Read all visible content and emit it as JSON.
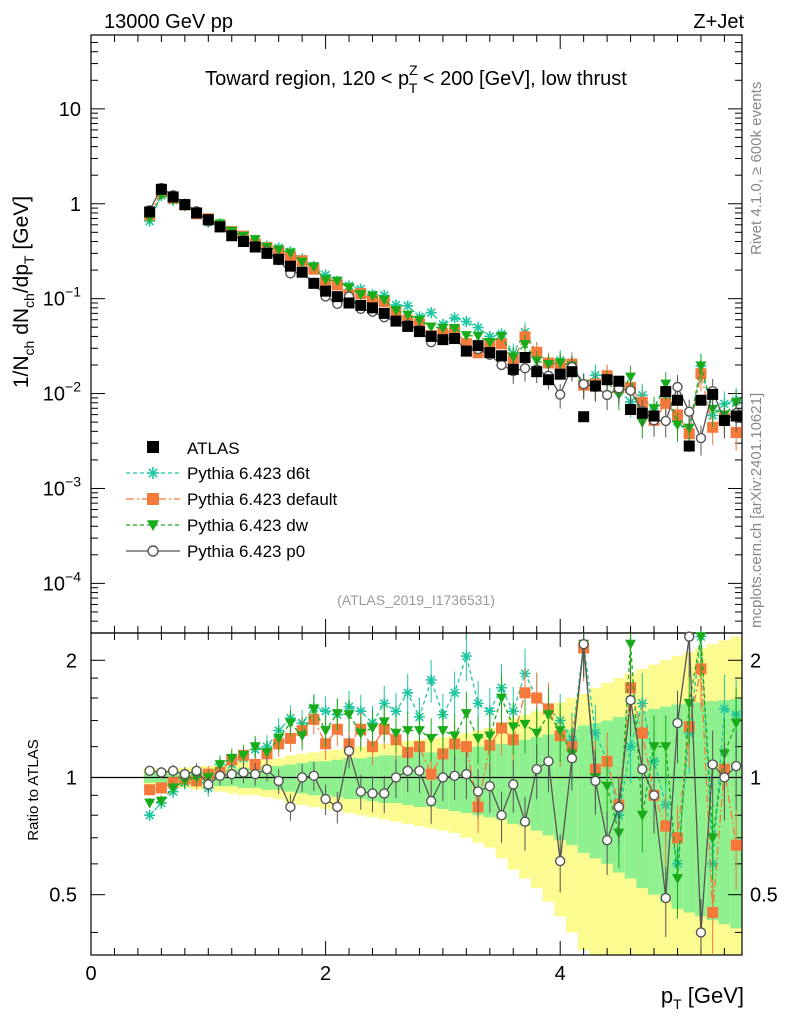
{
  "header": {
    "left": "13000 GeV pp",
    "right": "Z+Jet"
  },
  "side_labels": {
    "rivet": "Rivet 4.1.0, ≥ 600k events",
    "mcplots": "mcplots.cern.ch [arXiv:2401.10621]"
  },
  "colors": {
    "atlas": "#000000",
    "d6t": "#1fc7a1",
    "default": "#f5793a",
    "dw": "#1aab1a",
    "p0": "#555555",
    "band_yellow": "#fbfb8f",
    "band_green": "#8ff08f"
  },
  "chart_data": {
    "type": "scatter",
    "title_parts": {
      "prefix": "Toward region, 120 < p",
      "sup": "Z",
      "sub": "T",
      "suffix": " < 200 [GeV], low thrust"
    },
    "watermark": "(ATLAS_2019_I1736531)",
    "ylabel_parts": [
      "1/N",
      "ch",
      " dN",
      "ch",
      "/dp",
      "T",
      " [GeV]"
    ],
    "xlabel_parts": [
      "p",
      "T",
      " [GeV]"
    ],
    "ratio_ylabel": "Ratio to ATLAS",
    "xlim": [
      0,
      5.55
    ],
    "ylim_main": [
      3e-05,
      60
    ],
    "ylim_ratio": [
      0.35,
      2.35
    ],
    "x_ticks": [
      "0",
      "2",
      "4"
    ],
    "x_tick_values": [
      0,
      2,
      4
    ],
    "main_y_ticks": [
      {
        "base": "10",
        "exp": "−4",
        "value": 0.0001
      },
      {
        "base": "10",
        "exp": "−3",
        "value": 0.001
      },
      {
        "base": "10",
        "exp": "−2",
        "value": 0.01
      },
      {
        "base": "10",
        "exp": "−1",
        "value": 0.1
      },
      {
        "base": "1",
        "exp": "",
        "value": 1
      },
      {
        "base": "10",
        "exp": "",
        "value": 10
      }
    ],
    "ratio_y_ticks": [
      {
        "label": "0.5",
        "value": 0.5
      },
      {
        "label": "1",
        "value": 1
      },
      {
        "label": "2",
        "value": 2
      }
    ],
    "x": [
      0.5,
      0.6,
      0.7,
      0.8,
      0.9,
      1.0,
      1.1,
      1.2,
      1.3,
      1.4,
      1.5,
      1.6,
      1.7,
      1.8,
      1.9,
      2.0,
      2.1,
      2.2,
      2.3,
      2.4,
      2.5,
      2.6,
      2.7,
      2.8,
      2.9,
      3.0,
      3.1,
      3.2,
      3.3,
      3.4,
      3.5,
      3.6,
      3.7,
      3.8,
      3.9,
      4.0,
      4.1,
      4.2,
      4.3,
      4.4,
      4.5,
      4.6,
      4.7,
      4.8,
      4.9,
      5.0,
      5.1,
      5.2,
      5.3,
      5.4,
      5.5
    ],
    "atlas": [
      0.82,
      1.42,
      1.18,
      0.98,
      0.8,
      0.68,
      0.57,
      0.46,
      0.4,
      0.35,
      0.3,
      0.26,
      0.22,
      0.19,
      0.145,
      0.12,
      0.105,
      0.09,
      0.085,
      0.08,
      0.07,
      0.058,
      0.051,
      0.045,
      0.04,
      0.037,
      0.038,
      0.028,
      0.032,
      0.027,
      0.025,
      0.018,
      0.024,
      0.017,
      0.014,
      0.016,
      0.017,
      0.0057,
      0.012,
      0.014,
      0.0135,
      0.0068,
      0.0062,
      0.0058,
      0.0105,
      0.0085,
      0.0028,
      0.0085,
      0.0098,
      0.0052,
      0.0058
    ],
    "series": [
      {
        "name": "Pythia 6.423 d6t",
        "key": "d6t",
        "marker": "star",
        "dash": "4,3",
        "ratio": [
          0.8,
          0.86,
          0.92,
          0.97,
          1.01,
          0.94,
          1.08,
          1.08,
          1.12,
          1.18,
          1.2,
          1.32,
          1.42,
          1.38,
          1.51,
          1.48,
          1.45,
          1.52,
          1.48,
          1.38,
          1.55,
          1.48,
          1.65,
          1.43,
          1.78,
          1.45,
          1.65,
          2.05,
          1.55,
          1.48,
          1.7,
          1.48,
          1.85,
          1.6,
          1.5,
          1.4,
          1.25,
          2.2,
          1.3,
          1.1,
          0.8,
          1.2,
          1.55,
          1.1,
          0.85,
          0.6,
          1.3,
          2.3,
          0.6,
          1.5,
          1.45
        ]
      },
      {
        "name": "Pythia 6.423 default",
        "key": "default",
        "marker": "square",
        "dash": "8,3,2,3",
        "ratio": [
          0.93,
          0.94,
          0.97,
          0.99,
          0.98,
          1.02,
          1.03,
          1.11,
          1.14,
          1.08,
          1.15,
          1.22,
          1.26,
          1.32,
          1.41,
          1.22,
          1.33,
          1.22,
          1.33,
          1.2,
          1.33,
          1.25,
          1.16,
          1.2,
          1.02,
          1.15,
          1.22,
          1.2,
          0.84,
          1.21,
          1.34,
          1.25,
          1.65,
          1.6,
          1.5,
          1.28,
          1.2,
          2.15,
          1.05,
          1.1,
          0.85,
          1.7,
          1.3,
          0.9,
          0.75,
          0.7,
          1.35,
          1.9,
          0.45,
          1.05,
          0.67
        ]
      },
      {
        "name": "Pythia 6.423 dw",
        "key": "dw",
        "marker": "triangle",
        "dash": "4,3",
        "ratio": [
          0.86,
          0.87,
          0.94,
          0.98,
          1.0,
          1.0,
          1.08,
          1.12,
          1.14,
          1.2,
          1.16,
          1.26,
          1.38,
          1.28,
          1.5,
          1.32,
          1.46,
          1.45,
          1.3,
          1.34,
          1.39,
          1.3,
          1.32,
          1.32,
          1.26,
          1.32,
          1.28,
          1.46,
          1.26,
          1.28,
          1.6,
          1.35,
          1.37,
          1.3,
          1.45,
          1.32,
          1.15,
          2.2,
          1.0,
          0.95,
          0.72,
          2.2,
          0.8,
          1.2,
          1.2,
          0.55,
          1.55,
          2.3,
          0.7,
          1.15,
          1.38
        ]
      },
      {
        "name": "Pythia 6.423 p0",
        "key": "p0",
        "marker": "circle",
        "dash": "",
        "ratio": [
          1.04,
          1.03,
          1.04,
          1.02,
          1.04,
          0.96,
          1.01,
          1.02,
          1.03,
          1.02,
          1.05,
          0.98,
          0.84,
          1.0,
          1.01,
          0.88,
          0.84,
          1.17,
          0.92,
          0.91,
          0.91,
          1.0,
          1.04,
          1.04,
          0.87,
          1.0,
          1.01,
          1.02,
          0.92,
          0.95,
          0.8,
          0.96,
          0.77,
          1.05,
          1.1,
          0.61,
          1.12,
          2.2,
          0.98,
          0.69,
          0.84,
          1.58,
          1.05,
          0.9,
          0.49,
          1.38,
          2.3,
          0.4,
          1.08,
          1.0,
          1.07
        ]
      }
    ],
    "band_yellow": [
      [
        0.94,
        1.06
      ],
      [
        0.95,
        1.05
      ],
      [
        0.95,
        1.05
      ],
      [
        0.94,
        1.06
      ],
      [
        0.93,
        1.07
      ],
      [
        0.93,
        1.07
      ],
      [
        0.92,
        1.08
      ],
      [
        0.91,
        1.09
      ],
      [
        0.9,
        1.1
      ],
      [
        0.9,
        1.1
      ],
      [
        0.89,
        1.11
      ],
      [
        0.88,
        1.12
      ],
      [
        0.86,
        1.14
      ],
      [
        0.85,
        1.15
      ],
      [
        0.84,
        1.16
      ],
      [
        0.83,
        1.17
      ],
      [
        0.82,
        1.18
      ],
      [
        0.81,
        1.19
      ],
      [
        0.8,
        1.2
      ],
      [
        0.79,
        1.21
      ],
      [
        0.78,
        1.22
      ],
      [
        0.77,
        1.23
      ],
      [
        0.76,
        1.24
      ],
      [
        0.75,
        1.25
      ],
      [
        0.74,
        1.26
      ],
      [
        0.73,
        1.27
      ],
      [
        0.72,
        1.28
      ],
      [
        0.7,
        1.3
      ],
      [
        0.68,
        1.32
      ],
      [
        0.66,
        1.34
      ],
      [
        0.62,
        1.38
      ],
      [
        0.58,
        1.42
      ],
      [
        0.55,
        1.45
      ],
      [
        0.52,
        1.48
      ],
      [
        0.48,
        1.52
      ],
      [
        0.44,
        1.56
      ],
      [
        0.4,
        1.6
      ],
      [
        0.36,
        1.64
      ],
      [
        0.35,
        1.7
      ],
      [
        0.35,
        1.75
      ],
      [
        0.35,
        1.8
      ],
      [
        0.35,
        1.85
      ],
      [
        0.35,
        1.9
      ],
      [
        0.35,
        1.95
      ],
      [
        0.35,
        2.0
      ],
      [
        0.35,
        2.05
      ],
      [
        0.35,
        2.1
      ],
      [
        0.35,
        2.15
      ],
      [
        0.35,
        2.2
      ],
      [
        0.35,
        2.25
      ],
      [
        0.35,
        2.3
      ]
    ],
    "band_green": [
      [
        0.97,
        1.03
      ],
      [
        0.97,
        1.03
      ],
      [
        0.97,
        1.03
      ],
      [
        0.97,
        1.03
      ],
      [
        0.96,
        1.04
      ],
      [
        0.96,
        1.04
      ],
      [
        0.95,
        1.05
      ],
      [
        0.95,
        1.05
      ],
      [
        0.94,
        1.06
      ],
      [
        0.94,
        1.06
      ],
      [
        0.93,
        1.07
      ],
      [
        0.93,
        1.07
      ],
      [
        0.92,
        1.08
      ],
      [
        0.91,
        1.09
      ],
      [
        0.9,
        1.1
      ],
      [
        0.9,
        1.1
      ],
      [
        0.89,
        1.11
      ],
      [
        0.88,
        1.12
      ],
      [
        0.88,
        1.12
      ],
      [
        0.87,
        1.13
      ],
      [
        0.86,
        1.14
      ],
      [
        0.86,
        1.14
      ],
      [
        0.85,
        1.15
      ],
      [
        0.84,
        1.16
      ],
      [
        0.84,
        1.16
      ],
      [
        0.83,
        1.17
      ],
      [
        0.82,
        1.18
      ],
      [
        0.81,
        1.19
      ],
      [
        0.8,
        1.2
      ],
      [
        0.79,
        1.21
      ],
      [
        0.78,
        1.22
      ],
      [
        0.76,
        1.24
      ],
      [
        0.75,
        1.25
      ],
      [
        0.73,
        1.27
      ],
      [
        0.71,
        1.29
      ],
      [
        0.69,
        1.31
      ],
      [
        0.67,
        1.33
      ],
      [
        0.64,
        1.36
      ],
      [
        0.62,
        1.38
      ],
      [
        0.6,
        1.4
      ],
      [
        0.57,
        1.43
      ],
      [
        0.55,
        1.45
      ],
      [
        0.52,
        1.48
      ],
      [
        0.5,
        1.5
      ],
      [
        0.48,
        1.52
      ],
      [
        0.46,
        1.54
      ],
      [
        0.45,
        1.55
      ],
      [
        0.44,
        1.56
      ],
      [
        0.43,
        1.57
      ],
      [
        0.42,
        1.58
      ],
      [
        0.41,
        1.59
      ]
    ]
  }
}
